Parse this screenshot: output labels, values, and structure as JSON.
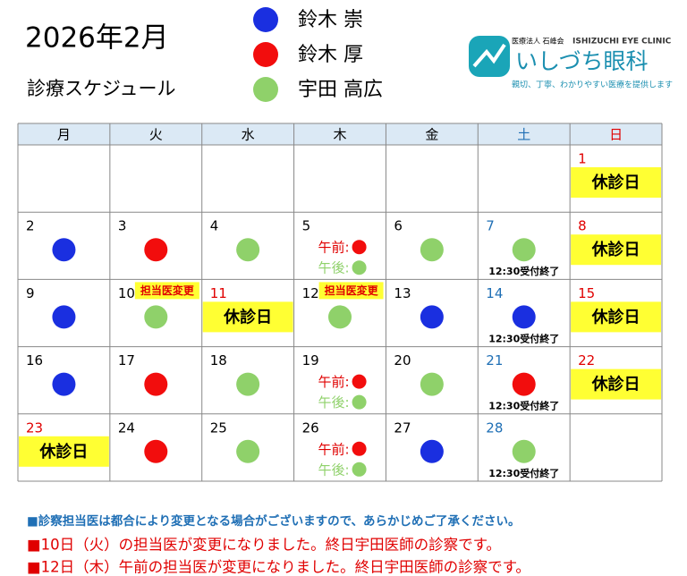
{
  "header": {
    "title": "2026年2月",
    "subtitle": "診療スケジュール",
    "legend": [
      {
        "name": "鈴木 崇",
        "color": "#1a2fe0"
      },
      {
        "name": "鈴木 厚",
        "color": "#f20d0d"
      },
      {
        "name": "宇田 高広",
        "color": "#8fd16a"
      }
    ],
    "logo": {
      "org": "医療法人 石峰会",
      "english": "ISHIZUCHI EYE CLINIC",
      "name": "いしづち眼科",
      "tagline": "親切、丁寧、わかりやすい医療を提供します"
    }
  },
  "table": {
    "columns": [
      {
        "label": "月",
        "color": "#000000"
      },
      {
        "label": "火",
        "color": "#000000"
      },
      {
        "label": "水",
        "color": "#000000"
      },
      {
        "label": "木",
        "color": "#000000"
      },
      {
        "label": "金",
        "color": "#000000"
      },
      {
        "label": "土",
        "color": "#1f6fb5"
      },
      {
        "label": "日",
        "color": "#e00000"
      }
    ],
    "rows": [
      [
        null,
        null,
        null,
        null,
        null,
        null,
        {
          "day": "1",
          "day_color": "#e00000",
          "closed": "休診日"
        }
      ],
      [
        {
          "day": "2",
          "dot": "#1a2fe0"
        },
        {
          "day": "3",
          "dot": "#f20d0d"
        },
        {
          "day": "4",
          "dot": "#8fd16a"
        },
        {
          "day": "5",
          "am": "午前:",
          "am_dot": "#f20d0d",
          "pm": "午後:",
          "pm_dot": "#8fd16a"
        },
        {
          "day": "6",
          "dot": "#8fd16a"
        },
        {
          "day": "7",
          "day_color": "#1f6fb5",
          "dot": "#8fd16a",
          "note": "12:30受付終了"
        },
        {
          "day": "8",
          "day_color": "#e00000",
          "closed": "休診日"
        }
      ],
      [
        {
          "day": "9",
          "dot": "#1a2fe0"
        },
        {
          "day": "10",
          "badge": "担当医変更",
          "dot": "#8fd16a"
        },
        {
          "day": "11",
          "day_color": "#e00000",
          "closed": "休診日"
        },
        {
          "day": "12",
          "badge": "担当医変更",
          "dot": "#8fd16a"
        },
        {
          "day": "13",
          "dot": "#1a2fe0"
        },
        {
          "day": "14",
          "day_color": "#1f6fb5",
          "dot": "#1a2fe0",
          "note": "12:30受付終了"
        },
        {
          "day": "15",
          "day_color": "#e00000",
          "closed": "休診日"
        }
      ],
      [
        {
          "day": "16",
          "dot": "#1a2fe0"
        },
        {
          "day": "17",
          "dot": "#f20d0d"
        },
        {
          "day": "18",
          "dot": "#8fd16a"
        },
        {
          "day": "19",
          "am": "午前:",
          "am_dot": "#f20d0d",
          "pm": "午後:",
          "pm_dot": "#8fd16a"
        },
        {
          "day": "20",
          "dot": "#8fd16a"
        },
        {
          "day": "21",
          "day_color": "#1f6fb5",
          "dot": "#f20d0d",
          "note": "12:30受付終了"
        },
        {
          "day": "22",
          "day_color": "#e00000",
          "closed": "休診日"
        }
      ],
      [
        {
          "day": "23",
          "day_color": "#e00000",
          "closed": "休診日"
        },
        {
          "day": "24",
          "dot": "#f20d0d"
        },
        {
          "day": "25",
          "dot": "#8fd16a"
        },
        {
          "day": "26",
          "am": "午前:",
          "am_dot": "#f20d0d",
          "pm": "午後:",
          "pm_dot": "#8fd16a"
        },
        {
          "day": "27",
          "dot": "#1a2fe0"
        },
        {
          "day": "28",
          "day_color": "#1f6fb5",
          "dot": "#8fd16a",
          "note": "12:30受付終了"
        },
        null
      ]
    ]
  },
  "notes": [
    "■診察担当医は都合により変更となる場合がございますので、あらかじめご了承ください。",
    "■10日（火）の担当医が変更になりました。終日宇田医師の診察です。",
    "■12日（木）午前の担当医が変更になりました。終日宇田医師の診察です。"
  ]
}
